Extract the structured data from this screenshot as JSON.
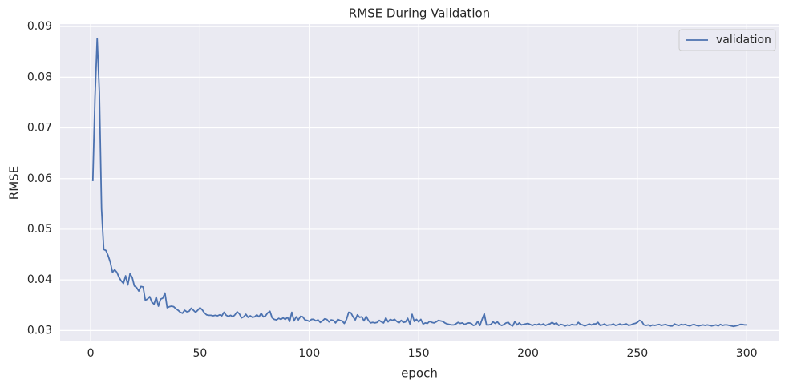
{
  "chart_data": {
    "type": "line",
    "title": "RMSE During Validation",
    "xlabel": "epoch",
    "ylabel": "RMSE",
    "x": [
      1,
      2,
      3,
      4,
      5,
      6,
      7,
      8,
      9,
      10,
      11,
      12,
      13,
      14,
      15,
      16,
      17,
      18,
      19,
      20,
      21,
      22,
      23,
      24,
      25,
      26,
      27,
      28,
      29,
      30,
      31,
      32,
      33,
      34,
      35,
      36,
      37,
      38,
      39,
      40,
      41,
      42,
      43,
      44,
      45,
      46,
      47,
      48,
      49,
      50,
      51,
      52,
      53,
      54,
      55,
      56,
      57,
      58,
      59,
      60,
      61,
      62,
      63,
      64,
      65,
      66,
      67,
      68,
      69,
      70,
      71,
      72,
      73,
      74,
      75,
      76,
      77,
      78,
      79,
      80,
      81,
      82,
      83,
      84,
      85,
      86,
      87,
      88,
      89,
      90,
      91,
      92,
      93,
      94,
      95,
      96,
      97,
      98,
      99,
      100,
      101,
      102,
      103,
      104,
      105,
      106,
      107,
      108,
      109,
      110,
      111,
      112,
      113,
      114,
      115,
      116,
      117,
      118,
      119,
      120,
      121,
      122,
      123,
      124,
      125,
      126,
      127,
      128,
      129,
      130,
      131,
      132,
      133,
      134,
      135,
      136,
      137,
      138,
      139,
      140,
      141,
      142,
      143,
      144,
      145,
      146,
      147,
      148,
      149,
      150,
      151,
      152,
      153,
      154,
      155,
      156,
      157,
      158,
      159,
      160,
      161,
      162,
      163,
      164,
      165,
      166,
      167,
      168,
      169,
      170,
      171,
      172,
      173,
      174,
      175,
      176,
      177,
      178,
      179,
      180,
      181,
      182,
      183,
      184,
      185,
      186,
      187,
      188,
      189,
      190,
      191,
      192,
      193,
      194,
      195,
      196,
      197,
      198,
      199,
      200,
      201,
      202,
      203,
      204,
      205,
      206,
      207,
      208,
      209,
      210,
      211,
      212,
      213,
      214,
      215,
      216,
      217,
      218,
      219,
      220,
      221,
      222,
      223,
      224,
      225,
      226,
      227,
      228,
      229,
      230,
      231,
      232,
      233,
      234,
      235,
      236,
      237,
      238,
      239,
      240,
      241,
      242,
      243,
      244,
      245,
      246,
      247,
      248,
      249,
      250,
      251,
      252,
      253,
      254,
      255,
      256,
      257,
      258,
      259,
      260,
      261,
      262,
      263,
      264,
      265,
      266,
      267,
      268,
      269,
      270,
      271,
      272,
      273,
      274,
      275,
      276,
      277,
      278,
      279,
      280,
      281,
      282,
      283,
      284,
      285,
      286,
      287,
      288,
      289,
      290,
      291,
      292,
      293,
      294,
      295,
      296,
      297,
      298,
      299,
      300
    ],
    "series": [
      {
        "name": "validation",
        "color": "#4c72b0",
        "values": [
          0.0595,
          0.076,
          0.0876,
          0.077,
          0.054,
          0.046,
          0.0458,
          0.0448,
          0.0435,
          0.0415,
          0.042,
          0.0415,
          0.0405,
          0.0398,
          0.0393,
          0.0408,
          0.039,
          0.0412,
          0.0405,
          0.0388,
          0.0385,
          0.0378,
          0.0387,
          0.0386,
          0.036,
          0.0362,
          0.0367,
          0.0356,
          0.0352,
          0.0366,
          0.0348,
          0.0362,
          0.0364,
          0.0374,
          0.0345,
          0.0347,
          0.0348,
          0.0347,
          0.0343,
          0.034,
          0.0336,
          0.0334,
          0.034,
          0.0337,
          0.0338,
          0.0344,
          0.034,
          0.0336,
          0.034,
          0.0345,
          0.0341,
          0.0335,
          0.0331,
          0.033,
          0.033,
          0.0329,
          0.033,
          0.0329,
          0.0331,
          0.0329,
          0.0336,
          0.033,
          0.0328,
          0.033,
          0.0327,
          0.0331,
          0.0337,
          0.0333,
          0.0325,
          0.0327,
          0.0332,
          0.0326,
          0.0329,
          0.0326,
          0.0327,
          0.0331,
          0.0327,
          0.0334,
          0.0327,
          0.0329,
          0.0335,
          0.0338,
          0.0325,
          0.0322,
          0.0321,
          0.0324,
          0.0322,
          0.0325,
          0.0322,
          0.0326,
          0.0318,
          0.0336,
          0.0319,
          0.0327,
          0.0321,
          0.0328,
          0.0327,
          0.0321,
          0.032,
          0.0318,
          0.0322,
          0.0322,
          0.0319,
          0.0321,
          0.0316,
          0.0319,
          0.0323,
          0.0322,
          0.0317,
          0.0321,
          0.032,
          0.0315,
          0.0322,
          0.032,
          0.0319,
          0.0314,
          0.0322,
          0.0336,
          0.0335,
          0.0327,
          0.0321,
          0.0331,
          0.0326,
          0.0327,
          0.0319,
          0.0328,
          0.032,
          0.0315,
          0.0316,
          0.0315,
          0.0316,
          0.032,
          0.0317,
          0.0315,
          0.0325,
          0.0317,
          0.0322,
          0.032,
          0.0322,
          0.0318,
          0.0315,
          0.032,
          0.0316,
          0.0317,
          0.0324,
          0.0313,
          0.0332,
          0.0318,
          0.0322,
          0.0317,
          0.0322,
          0.0313,
          0.0315,
          0.0314,
          0.0318,
          0.0316,
          0.0315,
          0.0317,
          0.032,
          0.0319,
          0.0318,
          0.0315,
          0.0313,
          0.0312,
          0.0311,
          0.0311,
          0.0313,
          0.0316,
          0.0314,
          0.0315,
          0.0312,
          0.0314,
          0.0315,
          0.0314,
          0.031,
          0.0311,
          0.0318,
          0.031,
          0.0322,
          0.0333,
          0.0311,
          0.0311,
          0.0312,
          0.0317,
          0.0314,
          0.0317,
          0.0312,
          0.031,
          0.0312,
          0.0315,
          0.0316,
          0.0311,
          0.0309,
          0.0318,
          0.0311,
          0.0315,
          0.0311,
          0.0312,
          0.0313,
          0.0314,
          0.0312,
          0.031,
          0.0312,
          0.0311,
          0.0313,
          0.0311,
          0.0313,
          0.031,
          0.0312,
          0.0313,
          0.0316,
          0.0313,
          0.0315,
          0.031,
          0.0312,
          0.0311,
          0.0309,
          0.0311,
          0.031,
          0.0312,
          0.0311,
          0.0311,
          0.0316,
          0.0312,
          0.0311,
          0.0309,
          0.0311,
          0.0313,
          0.0311,
          0.0313,
          0.0313,
          0.0316,
          0.031,
          0.0311,
          0.0313,
          0.031,
          0.0311,
          0.0311,
          0.0313,
          0.031,
          0.0311,
          0.0313,
          0.0311,
          0.0312,
          0.0313,
          0.031,
          0.0311,
          0.0313,
          0.0314,
          0.0316,
          0.032,
          0.0318,
          0.0311,
          0.031,
          0.0311,
          0.0309,
          0.0311,
          0.031,
          0.0311,
          0.0312,
          0.031,
          0.0311,
          0.0312,
          0.031,
          0.0309,
          0.0309,
          0.0313,
          0.0311,
          0.031,
          0.0312,
          0.0311,
          0.0312,
          0.031,
          0.0309,
          0.0311,
          0.0312,
          0.031,
          0.0309,
          0.031,
          0.0311,
          0.031,
          0.0311,
          0.031,
          0.0309,
          0.031,
          0.0311,
          0.0309,
          0.0312,
          0.031,
          0.0311,
          0.0311,
          0.031,
          0.0309,
          0.0308,
          0.0309,
          0.031,
          0.0312,
          0.0312,
          0.0311,
          0.0311
        ]
      }
    ],
    "xlim": [
      -13.95,
      314.95
    ],
    "ylim": [
      0.028,
      0.0905
    ],
    "xticks": [
      0,
      50,
      100,
      150,
      200,
      250,
      300
    ],
    "yticks": [
      0.03,
      0.04,
      0.05,
      0.06,
      0.07,
      0.08,
      0.09
    ],
    "grid": true,
    "legend": "upper right"
  }
}
